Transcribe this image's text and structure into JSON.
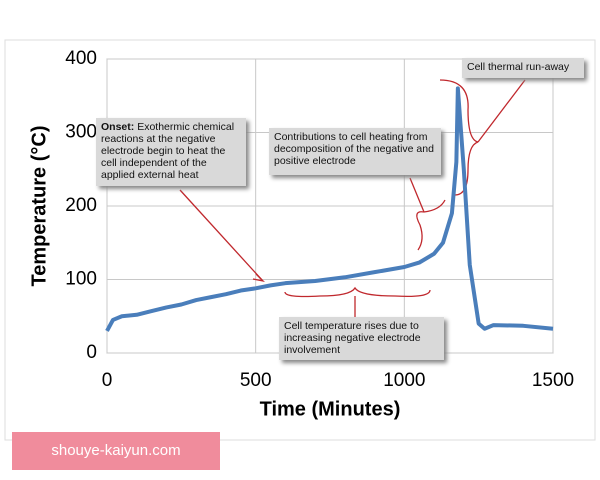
{
  "chart_data": {
    "type": "line",
    "xlabel": "Time (Minutes)",
    "ylabel": "Temperature (°C)",
    "x": [
      0,
      20,
      50,
      100,
      150,
      200,
      250,
      300,
      350,
      400,
      450,
      500,
      550,
      600,
      700,
      800,
      900,
      1000,
      1050,
      1100,
      1130,
      1160,
      1175,
      1180,
      1200,
      1220,
      1250,
      1270,
      1300,
      1400,
      1500
    ],
    "series": [
      {
        "name": "Cell temperature",
        "color": "#4a7ebb",
        "values": [
          30,
          45,
          50,
          52,
          57,
          62,
          66,
          72,
          76,
          80,
          85,
          88,
          92,
          95,
          98,
          103,
          110,
          117,
          123,
          135,
          150,
          190,
          260,
          360,
          250,
          120,
          40,
          33,
          38,
          37,
          33
        ]
      }
    ],
    "xlim": [
      0,
      1500
    ],
    "xticks": [
      0,
      500,
      1000,
      1500
    ],
    "ylim": [
      0,
      400
    ],
    "yticks": [
      0,
      100,
      200,
      300,
      400
    ],
    "grid": true,
    "annotations": [
      {
        "lead": "Onset:",
        "text": "Exothermic chemical reactions at the negative electrode begin to heat the cell independent of the applied external heat"
      },
      {
        "text": "Contributions to cell heating from decomposition of the negative and positive electrode"
      },
      {
        "text": "Cell thermal run-away"
      },
      {
        "text": "Cell temperature rises due to increasing negative electrode involvement"
      }
    ]
  },
  "footer": "shouye-kaiyun.com"
}
